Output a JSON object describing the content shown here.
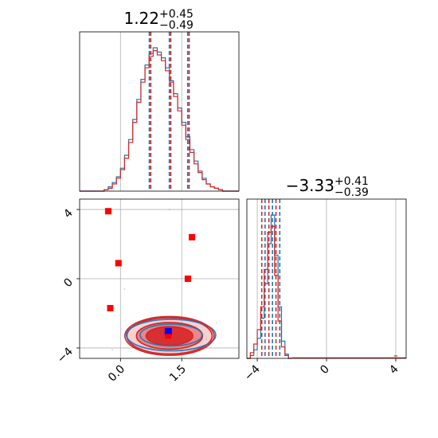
{
  "chart_data": [
    {
      "type": "histogram",
      "panel": "marginal-param-1",
      "title_value": "1.22",
      "title_plus": "+0.45",
      "title_minus": "−0.49",
      "xlim": [
        -1.0,
        2.9
      ],
      "grid": true,
      "quantile_lines": [
        0.73,
        1.22,
        1.67
      ],
      "series": [
        {
          "color": "#1f77b4",
          "bin_edges": [
            -1.0,
            -0.9,
            -0.8,
            -0.7,
            -0.6,
            -0.5,
            -0.4,
            -0.3,
            -0.2,
            -0.1,
            0.0,
            0.1,
            0.2,
            0.3,
            0.4,
            0.5,
            0.6,
            0.7,
            0.8,
            0.9,
            1.0,
            1.1,
            1.2,
            1.3,
            1.4,
            1.5,
            1.6,
            1.7,
            1.8,
            1.9,
            2.0,
            2.1,
            2.2,
            2.3,
            2.4,
            2.5,
            2.6,
            2.7,
            2.8,
            2.9
          ],
          "counts": [
            0,
            0,
            0,
            0,
            0,
            0,
            1,
            3,
            6,
            10,
            16,
            25,
            36,
            50,
            64,
            78,
            88,
            96,
            100,
            97,
            93,
            86,
            77,
            68,
            58,
            48,
            38,
            29,
            21,
            14,
            9,
            5,
            3,
            2,
            1,
            0,
            0,
            0,
            0
          ]
        },
        {
          "color": "#d62728",
          "bin_edges": [
            -1.0,
            -0.9,
            -0.8,
            -0.7,
            -0.6,
            -0.5,
            -0.4,
            -0.3,
            -0.2,
            -0.1,
            0.0,
            0.1,
            0.2,
            0.3,
            0.4,
            0.5,
            0.6,
            0.7,
            0.8,
            0.9,
            1.0,
            1.1,
            1.2,
            1.3,
            1.4,
            1.5,
            1.6,
            1.7,
            1.8,
            1.9,
            2.0,
            2.1,
            2.2,
            2.3,
            2.4,
            2.5,
            2.6,
            2.7,
            2.8,
            2.9
          ],
          "counts": [
            0,
            0,
            0,
            0,
            0,
            0,
            1,
            2,
            5,
            9,
            15,
            23,
            34,
            48,
            62,
            76,
            86,
            94,
            98,
            95,
            91,
            84,
            76,
            66,
            56,
            46,
            36,
            27,
            19,
            13,
            8,
            5,
            3,
            2,
            1,
            0,
            0,
            0,
            0
          ]
        }
      ]
    },
    {
      "type": "histogram",
      "panel": "marginal-param-2",
      "title_value": "−3.33",
      "title_plus": "+0.41",
      "title_minus": "−0.39",
      "xlim": [
        -4.6,
        4.6
      ],
      "xticks": [
        -4,
        0,
        4
      ],
      "xtick_labels": [
        "−4",
        "0",
        "4"
      ],
      "grid": true,
      "quantile_lines_red": [
        -3.74,
        -3.33,
        -2.92
      ],
      "quantile_lines_blue": [
        -3.55,
        -3.12,
        -2.7
      ],
      "series": [
        {
          "color": "#1f77b4",
          "bin_edges": [
            -4.6,
            -4.4,
            -4.2,
            -4.0,
            -3.8,
            -3.6,
            -3.4,
            -3.2,
            -3.0,
            -2.8,
            -2.6,
            -2.4,
            -2.2,
            -2.0
          ],
          "counts": [
            0,
            2,
            6,
            14,
            28,
            52,
            80,
            100,
            72,
            36,
            12,
            3,
            0
          ]
        },
        {
          "color": "#d62728",
          "bin_edges": [
            -4.6,
            -4.4,
            -4.2,
            -4.0,
            -3.8,
            -3.6,
            -3.4,
            -3.2,
            -3.0,
            -2.8,
            -2.6,
            -2.4,
            -2.2,
            -2.0
          ],
          "counts": [
            0,
            4,
            10,
            20,
            36,
            62,
            88,
            92,
            58,
            26,
            8,
            2,
            0
          ]
        }
      ]
    },
    {
      "type": "scatter",
      "panel": "joint-param-1-vs-param-2",
      "xlim": [
        -1.0,
        2.9
      ],
      "ylim": [
        -4.6,
        4.6
      ],
      "xticks": [
        0.0,
        1.5
      ],
      "xtick_labels": [
        "0.0",
        "1.5"
      ],
      "yticks": [
        -4,
        0,
        4
      ],
      "ytick_labels": [
        "−4",
        "0",
        "4"
      ],
      "grid": true,
      "red_squares": [
        {
          "x": -0.3,
          "y": 3.9
        },
        {
          "x": -0.05,
          "y": 0.9
        },
        {
          "x": -0.25,
          "y": -1.7
        },
        {
          "x": 1.65,
          "y": 0.0
        },
        {
          "x": 1.75,
          "y": 2.4
        }
      ],
      "blue_square": {
        "x": 1.17,
        "y": -3.05
      },
      "contour_center": {
        "x": 1.2,
        "y": -3.3
      },
      "contour_levels": [
        {
          "rx": 1.1,
          "ry": 0.75,
          "color": "#d62728",
          "fill": "#f4a3a3",
          "opacity": 0.5
        },
        {
          "rx": 0.85,
          "ry": 0.55,
          "color": "#d62728",
          "fill": "#ea6a6a",
          "opacity": 0.7
        },
        {
          "rx": 0.6,
          "ry": 0.38,
          "color": "#d62728",
          "fill": "#d62728",
          "opacity": 0.9
        }
      ],
      "blue_contour_levels": [
        {
          "rx": 1.15,
          "ry": 0.65
        },
        {
          "rx": 0.8,
          "ry": 0.45
        }
      ]
    }
  ],
  "colors": {
    "blue": "#1f77b4",
    "red": "#d62728",
    "marker_blue": "#0000ff",
    "marker_red": "#ff0000"
  }
}
